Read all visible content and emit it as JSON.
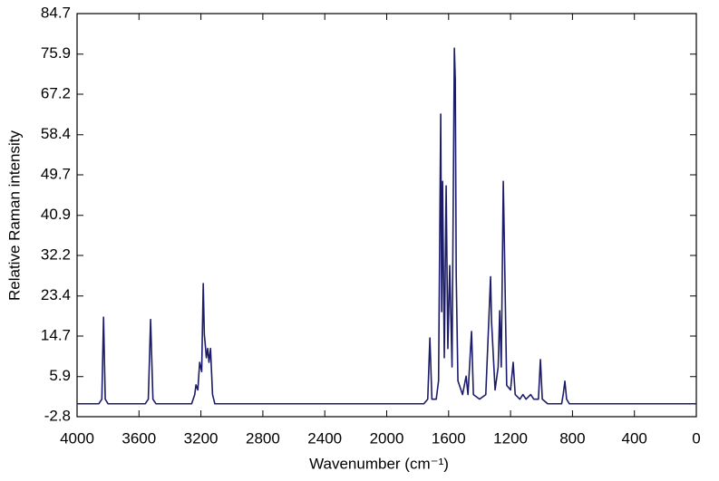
{
  "chart_data": {
    "type": "line",
    "x_label": "Wavenumber (cm⁻¹)",
    "y_label": "Relative Raman intensity",
    "xlim": [
      4000,
      0
    ],
    "xticks": [
      4000,
      3600,
      3200,
      2800,
      2400,
      2000,
      1600,
      1200,
      800,
      400,
      0
    ],
    "ylim": [
      -2.8,
      84.7
    ],
    "yticks": [
      -2.8,
      5.9,
      14.7,
      23.4,
      32.2,
      40.9,
      49.7,
      58.4,
      67.2,
      75.9,
      84.7
    ],
    "color": "#1c1c6b",
    "x": [
      4000,
      3860,
      3840,
      3829,
      3818,
      3800,
      3560,
      3540,
      3525,
      3510,
      3490,
      3260,
      3240,
      3232,
      3220,
      3208,
      3195,
      3185,
      3178,
      3173,
      3165,
      3156,
      3148,
      3138,
      3125,
      3110,
      1760,
      1735,
      1721,
      1708,
      1680,
      1665,
      1651,
      1645,
      1639,
      1628,
      1616,
      1605,
      1593,
      1578,
      1563,
      1557,
      1551,
      1540,
      1510,
      1487,
      1475,
      1452,
      1440,
      1400,
      1360,
      1329,
      1323,
      1300,
      1280,
      1270,
      1260,
      1247,
      1241,
      1225,
      1200,
      1183,
      1170,
      1140,
      1120,
      1100,
      1070,
      1050,
      1020,
      1007,
      995,
      960,
      870,
      860,
      849,
      838,
      820,
      0
    ],
    "values": [
      0,
      0,
      1,
      18.8,
      1,
      0,
      0,
      1,
      18.3,
      1,
      0,
      0,
      2,
      4.1,
      3,
      9,
      7,
      26.1,
      15,
      13.3,
      10,
      12,
      9,
      12,
      2,
      0,
      0,
      1,
      14.3,
      1,
      1,
      5,
      62.9,
      20,
      48.3,
      10,
      47.3,
      12,
      30,
      8,
      77.2,
      70.3,
      28,
      5,
      2,
      6,
      2,
      15.7,
      2,
      1,
      2,
      27.6,
      18,
      3,
      8,
      20.2,
      8,
      48.3,
      36.9,
      4,
      3,
      9.0,
      2,
      1,
      2,
      1,
      2,
      1,
      1,
      9.6,
      1,
      0,
      0,
      2,
      4.9,
      1,
      0,
      0
    ]
  }
}
